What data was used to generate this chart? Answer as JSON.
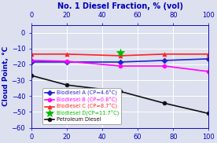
{
  "title": "No. 1 Diesel Fraction, % (vol)",
  "ylabel": "Cloud Point, °C",
  "x_ticks": [
    0,
    20,
    40,
    60,
    80,
    100
  ],
  "xlim": [
    0,
    100
  ],
  "ylim": [
    -60,
    5
  ],
  "y_ticks": [
    0,
    -10,
    -20,
    -30,
    -40,
    -50,
    -60
  ],
  "series": [
    {
      "label": "Biodiesel A (CP=4.6°C)",
      "color": "#2222cc",
      "marker": "D",
      "markersize": 3.5,
      "linewidth": 1.2,
      "x": [
        0,
        20,
        50,
        75,
        100
      ],
      "y": [
        -18.5,
        -18.5,
        -18.5,
        -17.5,
        -16.5
      ]
    },
    {
      "label": "Biodiesel B (CP=0.8°C)",
      "color": "#ff00ff",
      "marker": "o",
      "markersize": 3.5,
      "linewidth": 1.2,
      "x": [
        0,
        20,
        50,
        75,
        100
      ],
      "y": [
        -17.5,
        -18.0,
        -21.0,
        -21.0,
        -24.5
      ]
    },
    {
      "label": "Biodiesel C (CP=8.7°C)",
      "color": "#ff2222",
      "marker": "^",
      "markersize": 3.5,
      "linewidth": 1.2,
      "x": [
        0,
        20,
        50,
        75,
        100
      ],
      "y": [
        -13.5,
        -13.5,
        -14.5,
        -13.5,
        -13.5
      ]
    },
    {
      "label": "Biodiesel D(CP=11.7°C)",
      "color": "#00bb00",
      "marker": "*",
      "markersize": 7,
      "linewidth": 0,
      "x": [
        50
      ],
      "y": [
        -12.5
      ]
    },
    {
      "label": "Petroleum Diesel",
      "color": "#111111",
      "marker": "o",
      "markersize": 3.5,
      "linewidth": 1.2,
      "x": [
        0,
        20,
        50,
        75,
        100
      ],
      "y": [
        -27.0,
        -33.0,
        -37.0,
        -44.5,
        -51.0
      ]
    }
  ],
  "background_color": "#dde0ee",
  "grid_color": "#ffffff",
  "title_color": "#0000bb",
  "axis_label_color": "#0000bb",
  "tick_color": "#0000bb",
  "tick_fontsize": 6.0,
  "title_fontsize": 7.0,
  "ylabel_fontsize": 6.5,
  "legend_fontsize": 4.8
}
